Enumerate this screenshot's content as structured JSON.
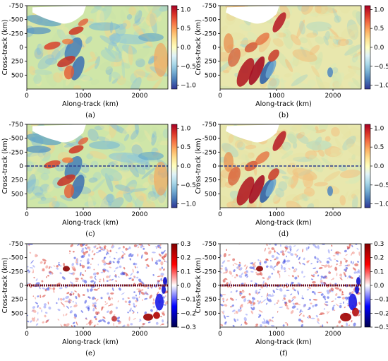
{
  "figure": {
    "panels": [
      {
        "label": "(a)",
        "colorbar": "rdylbu",
        "ticks": [
          "1.0",
          "0.5",
          "0.0",
          "−0.5",
          "−1.0"
        ],
        "overlay": "none",
        "features": "a"
      },
      {
        "label": "(b)",
        "colorbar": "rdylbu",
        "ticks": [
          "1.0",
          "0.5",
          "0.0",
          "−0.5",
          "−1.0"
        ],
        "overlay": "none",
        "features": "b"
      },
      {
        "label": "(c)",
        "colorbar": "rdylbu",
        "ticks": [
          "1.0",
          "0.5",
          "0.0",
          "−0.5",
          "−1.0"
        ],
        "overlay": "dash",
        "features": "a"
      },
      {
        "label": "(d)",
        "colorbar": "rdylbu",
        "ticks": [
          "1.0",
          "0.5",
          "0.0",
          "−0.5",
          "−1.0"
        ],
        "overlay": "dash",
        "features": "b"
      },
      {
        "label": "(e)",
        "colorbar": "seismic",
        "ticks": [
          "0.3",
          "0.2",
          "0.1",
          "0.0",
          "−0.1",
          "−0.2",
          "−0.3"
        ],
        "overlay": "band",
        "features": "e"
      },
      {
        "label": "(f)",
        "colorbar": "seismic",
        "ticks": [
          "0.3",
          "0.2",
          "0.1",
          "0.0",
          "−0.1",
          "−0.2",
          "−0.3"
        ],
        "overlay": "band",
        "features": "f"
      }
    ]
  },
  "chart_data": [
    {
      "type": "heatmap",
      "panel": "(a)",
      "xlabel": "Along-track (km)",
      "ylabel": "Cross-track (km)",
      "xticks": [
        0,
        1000,
        2000
      ],
      "yticks": [
        -750,
        -500,
        -250,
        0,
        250,
        500
      ],
      "xlim": [
        0,
        2500
      ],
      "ylim": [
        750,
        -750
      ],
      "colorbar_range": [
        -1.1,
        1.1
      ],
      "colormap": "RdYlBu_r"
    },
    {
      "type": "heatmap",
      "panel": "(b)",
      "xlabel": "Along-track (km)",
      "ylabel": "Cross-track (km)",
      "xticks": [
        0,
        1000,
        2000
      ],
      "yticks": [
        -750,
        -500,
        -250,
        0,
        250,
        500
      ],
      "xlim": [
        0,
        2500
      ],
      "ylim": [
        750,
        -750
      ],
      "colorbar_range": [
        -1.1,
        1.1
      ],
      "colormap": "RdYlBu_r"
    },
    {
      "type": "heatmap",
      "panel": "(c)",
      "xlabel": "Along-track (km)",
      "ylabel": "Cross-track (km)",
      "xticks": [
        0,
        1000,
        2000
      ],
      "yticks": [
        -750,
        -500,
        -250,
        0,
        250,
        500
      ],
      "xlim": [
        0,
        2500
      ],
      "ylim": [
        750,
        -750
      ],
      "colorbar_range": [
        -1.1,
        1.1
      ],
      "colormap": "RdYlBu_r"
    },
    {
      "type": "heatmap",
      "panel": "(d)",
      "xlabel": "Along-track (km)",
      "ylabel": "Cross-track (km)",
      "xticks": [
        0,
        1000,
        2000
      ],
      "yticks": [
        -750,
        -500,
        -250,
        0,
        250,
        500
      ],
      "xlim": [
        0,
        2500
      ],
      "ylim": [
        750,
        -750
      ],
      "colorbar_range": [
        -1.1,
        1.1
      ],
      "colormap": "RdYlBu_r"
    },
    {
      "type": "heatmap",
      "panel": "(e)",
      "xlabel": "Along-track (km)",
      "ylabel": "Cross-track (km)",
      "xticks": [
        0,
        1000,
        2000
      ],
      "yticks": [
        -750,
        -500,
        -250,
        0,
        250,
        500
      ],
      "xlim": [
        0,
        2500
      ],
      "ylim": [
        750,
        -750
      ],
      "colorbar_range": [
        -0.3,
        0.3
      ],
      "colormap": "seismic"
    },
    {
      "type": "heatmap",
      "panel": "(f)",
      "xlabel": "Along-track (km)",
      "ylabel": "Cross-track (km)",
      "xticks": [
        0,
        1000,
        2000
      ],
      "yticks": [
        -750,
        -500,
        -250,
        0,
        250,
        500
      ],
      "xlim": [
        0,
        2500
      ],
      "ylim": [
        750,
        -750
      ],
      "colorbar_range": [
        -0.3,
        0.3
      ],
      "colormap": "seismic"
    }
  ],
  "colors": {
    "rdylbu": [
      "#313695",
      "#4575b4",
      "#74add1",
      "#abd9e9",
      "#e0f3f8",
      "#ffffbf",
      "#fee090",
      "#fdae61",
      "#f46d43",
      "#d73027",
      "#a50026"
    ],
    "seismic": [
      "#00004c",
      "#0000ff",
      "#ffffff",
      "#ff0000",
      "#7f0000"
    ],
    "base_a": "#cfe6a8",
    "base_b": "#e8e7ad",
    "land": "#ffffff"
  }
}
